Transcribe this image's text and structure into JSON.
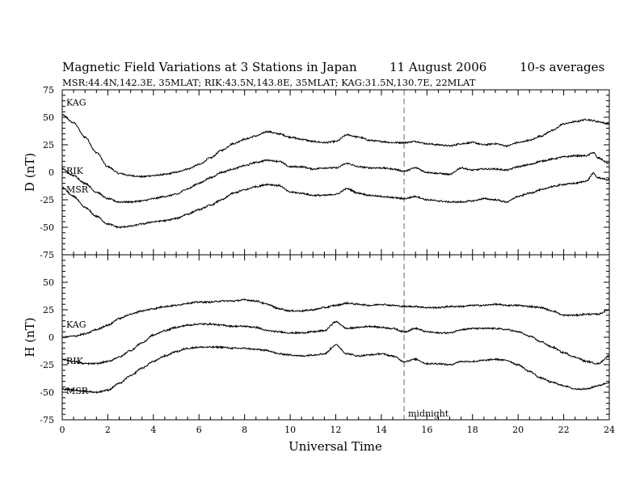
{
  "figure": {
    "title_main": "Magnetic Field Variations at 3 Stations in Japan",
    "title_date": "11 August  2006",
    "title_avg": "10-s averages",
    "subtitle": "MSR:44.4N,142.3E, 35MLAT;  RIK:43.5N,143.8E, 35MLAT;  KAG:31.5N,130.7E, 22MLAT",
    "xlabel": "Universal Time",
    "midnight_label": "midnight",
    "colors": {
      "trace": "#000000",
      "midnight_line": "#999999",
      "frame": "#000000"
    }
  },
  "chart_data": [
    {
      "type": "line",
      "panel": "top",
      "ylabel": "D (nT)",
      "xlim": [
        0,
        24
      ],
      "ylim": [
        -75,
        75
      ],
      "xticks": [
        "0",
        "2",
        "4",
        "6",
        "8",
        "10",
        "12",
        "14",
        "16",
        "18",
        "20",
        "22",
        "24"
      ],
      "yticks": [
        "-75",
        "-50",
        "-25",
        "0",
        "25",
        "50",
        "75"
      ],
      "annotation_x": 15,
      "series": [
        {
          "name": "KAG",
          "x": [
            0,
            0.5,
            1,
            1.5,
            2,
            2.5,
            3,
            3.5,
            4,
            4.5,
            5,
            5.5,
            6,
            6.5,
            7,
            7.5,
            8,
            8.5,
            9,
            9.5,
            10,
            10.5,
            11,
            11.5,
            12,
            12.5,
            13,
            13.5,
            14,
            14.5,
            15,
            15.5,
            16,
            16.5,
            17,
            17.5,
            18,
            18.5,
            19,
            19.5,
            20,
            20.5,
            21,
            21.5,
            22,
            22.5,
            23,
            23.3,
            23.5,
            24
          ],
          "y": [
            52,
            45,
            32,
            18,
            5,
            -1,
            -3,
            -4,
            -3,
            -2,
            0,
            3,
            7,
            13,
            20,
            26,
            30,
            33,
            37,
            35,
            32,
            30,
            28,
            27,
            28,
            34,
            32,
            29,
            28,
            27,
            27,
            28,
            26,
            25,
            24,
            26,
            27,
            25,
            26,
            24,
            27,
            29,
            33,
            38,
            44,
            46,
            48,
            47,
            46,
            44
          ]
        },
        {
          "name": "RIK",
          "x": [
            0,
            0.5,
            1,
            1.5,
            2,
            2.5,
            3,
            3.5,
            4,
            4.5,
            5,
            5.5,
            6,
            6.5,
            7,
            7.5,
            8,
            8.5,
            9,
            9.5,
            10,
            10.5,
            11,
            11.5,
            12,
            12.5,
            13,
            13.5,
            14,
            14.5,
            15,
            15.5,
            16,
            16.5,
            17,
            17.5,
            18,
            18.5,
            19,
            19.5,
            20,
            20.5,
            21,
            21.5,
            22,
            22.5,
            23,
            23.3,
            23.5,
            24
          ],
          "y": [
            3,
            -3,
            -10,
            -18,
            -24,
            -27,
            -27,
            -26,
            -24,
            -22,
            -20,
            -15,
            -10,
            -5,
            0,
            3,
            6,
            9,
            11,
            10,
            5,
            5,
            3,
            4,
            4,
            8,
            5,
            4,
            4,
            3,
            1,
            4,
            0,
            -1,
            -2,
            4,
            2,
            3,
            3,
            2,
            5,
            7,
            10,
            12,
            14,
            15,
            15,
            18,
            13,
            8
          ]
        },
        {
          "name": "MSR",
          "x": [
            0,
            0.5,
            1,
            1.5,
            2,
            2.5,
            3,
            3.5,
            4,
            4.5,
            5,
            5.5,
            6,
            6.5,
            7,
            7.5,
            8,
            8.5,
            9,
            9.5,
            10,
            10.5,
            11,
            11.5,
            12,
            12.5,
            13,
            13.5,
            14,
            14.5,
            15,
            15.5,
            16,
            16.5,
            17,
            17.5,
            18,
            18.5,
            19,
            19.5,
            20,
            20.5,
            21,
            21.5,
            22,
            22.5,
            23,
            23.3,
            23.5,
            24
          ],
          "y": [
            -14,
            -22,
            -32,
            -40,
            -47,
            -50,
            -49,
            -47,
            -45,
            -44,
            -42,
            -38,
            -34,
            -30,
            -25,
            -19,
            -16,
            -13,
            -11,
            -12,
            -18,
            -19,
            -21,
            -21,
            -20,
            -15,
            -19,
            -21,
            -22,
            -23,
            -24,
            -22,
            -25,
            -26,
            -27,
            -27,
            -26,
            -24,
            -25,
            -27,
            -22,
            -19,
            -16,
            -13,
            -11,
            -10,
            -8,
            -1,
            -5,
            -7
          ]
        }
      ]
    },
    {
      "type": "line",
      "panel": "bottom",
      "ylabel": "H (nT)",
      "xlim": [
        0,
        24
      ],
      "ylim": [
        -75,
        75
      ],
      "xticks": [
        "0",
        "2",
        "4",
        "6",
        "8",
        "10",
        "12",
        "14",
        "16",
        "18",
        "20",
        "22",
        "24"
      ],
      "yticks": [
        "-75",
        "-50",
        "-25",
        "0",
        "25",
        "50",
        "75"
      ],
      "annotation_x": 15,
      "series": [
        {
          "name": "KAG",
          "x": [
            0,
            0.5,
            1,
            1.5,
            2,
            2.5,
            3,
            3.5,
            4,
            4.5,
            5,
            5.5,
            6,
            6.5,
            7,
            7.5,
            8,
            8.5,
            9,
            9.5,
            10,
            10.5,
            11,
            11.5,
            12,
            12.5,
            13,
            13.5,
            14,
            14.5,
            15,
            15.5,
            16,
            16.5,
            17,
            17.5,
            18,
            18.5,
            19,
            19.5,
            20,
            20.5,
            21,
            21.5,
            22,
            22.5,
            23,
            23.5,
            24
          ],
          "y": [
            0,
            1,
            3,
            7,
            11,
            17,
            21,
            24,
            26,
            28,
            29,
            31,
            32,
            32,
            33,
            33,
            34,
            33,
            30,
            26,
            24,
            24,
            25,
            27,
            29,
            31,
            30,
            29,
            30,
            29,
            28,
            28,
            27,
            27,
            28,
            28,
            29,
            29,
            30,
            29,
            29,
            28,
            27,
            24,
            20,
            20,
            21,
            21,
            25
          ]
        },
        {
          "name": "RIK",
          "x": [
            0,
            0.5,
            1,
            1.5,
            2,
            2.5,
            3,
            3.5,
            4,
            4.5,
            5,
            5.5,
            6,
            6.5,
            7,
            7.5,
            8,
            8.5,
            9,
            9.5,
            10,
            10.5,
            11,
            11.5,
            12,
            12.5,
            13,
            13.5,
            14,
            14.5,
            15,
            15.5,
            16,
            16.5,
            17,
            17.5,
            18,
            18.5,
            19,
            19.5,
            20,
            20.5,
            21,
            21.5,
            22,
            22.5,
            23,
            23.5,
            24
          ],
          "y": [
            -20,
            -22,
            -24,
            -24,
            -22,
            -18,
            -12,
            -5,
            2,
            6,
            9,
            11,
            12,
            12,
            11,
            10,
            10,
            9,
            6,
            5,
            4,
            4,
            5,
            6,
            14,
            8,
            9,
            10,
            9,
            8,
            5,
            8,
            5,
            4,
            4,
            7,
            8,
            8,
            8,
            7,
            5,
            1,
            -4,
            -9,
            -14,
            -18,
            -22,
            -24,
            -17
          ]
        },
        {
          "name": "MSR",
          "x": [
            0,
            0.5,
            1,
            1.5,
            2,
            2.5,
            3,
            3.5,
            4,
            4.5,
            5,
            5.5,
            6,
            6.5,
            7,
            7.5,
            8,
            8.5,
            9,
            9.5,
            10,
            10.5,
            11,
            11.5,
            12,
            12.5,
            13,
            13.5,
            14,
            14.5,
            15,
            15.5,
            16,
            16.5,
            17,
            17.5,
            18,
            18.5,
            19,
            19.5,
            20,
            20.5,
            21,
            21.5,
            22,
            22.5,
            23,
            23.5,
            24
          ],
          "y": [
            -47,
            -48,
            -49,
            -50,
            -48,
            -42,
            -35,
            -28,
            -22,
            -17,
            -13,
            -10,
            -9,
            -9,
            -9,
            -10,
            -10,
            -11,
            -12,
            -15,
            -16,
            -17,
            -16,
            -15,
            -7,
            -15,
            -17,
            -16,
            -15,
            -17,
            -22,
            -20,
            -24,
            -24,
            -25,
            -22,
            -22,
            -21,
            -20,
            -21,
            -25,
            -31,
            -37,
            -41,
            -44,
            -47,
            -47,
            -44,
            -41
          ]
        }
      ]
    }
  ]
}
